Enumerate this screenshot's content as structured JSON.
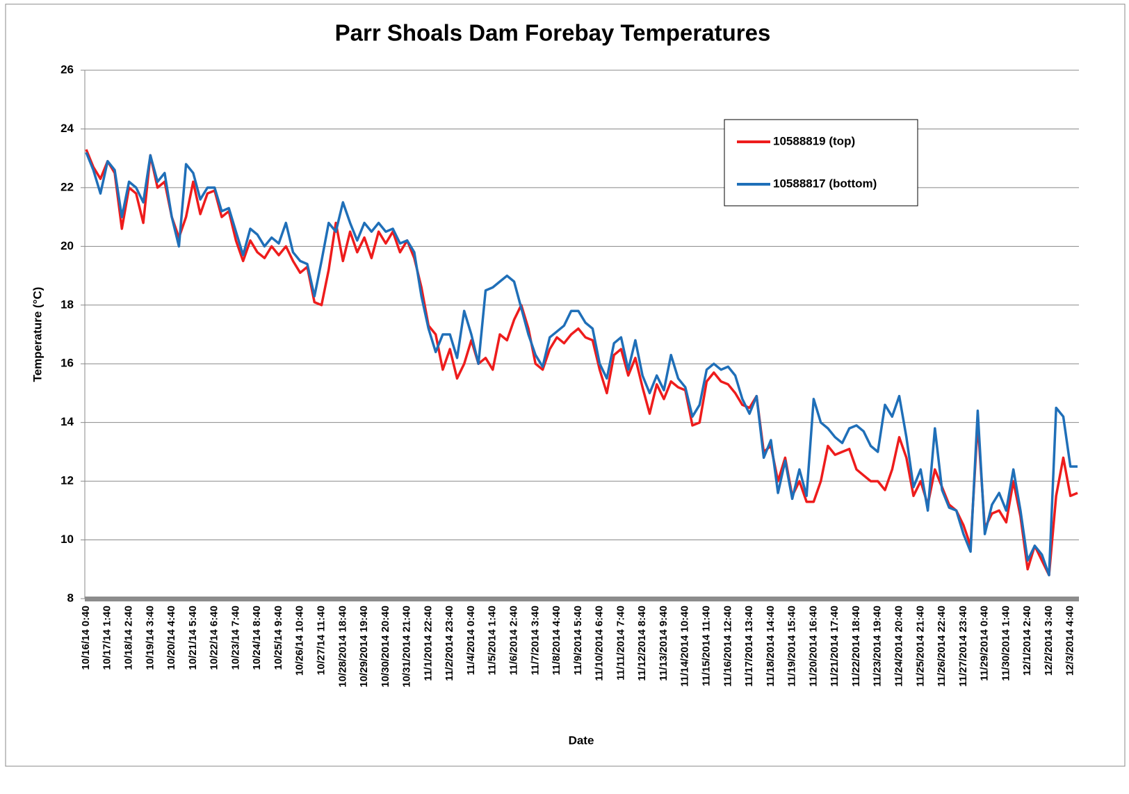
{
  "chart_data": {
    "type": "line",
    "title": "Parr Shoals Dam Forebay Temperatures",
    "x_label": "Date",
    "y_label": "Temperature (°C)",
    "ylim": [
      8,
      26
    ],
    "yticks": [
      8,
      10,
      12,
      14,
      16,
      18,
      20,
      22,
      24,
      26
    ],
    "grid": true,
    "legend": "upper right",
    "categories": [
      "10/16/14 0:40",
      null,
      null,
      "10/17/14 1:40",
      null,
      null,
      "10/18/14 2:40",
      null,
      null,
      "10/19/14 3:40",
      null,
      null,
      "10/20/14 4:40",
      null,
      null,
      "10/21/14 5:40",
      null,
      null,
      "10/22/14 6:40",
      null,
      null,
      "10/23/14 7:40",
      null,
      null,
      "10/24/14 8:40",
      null,
      null,
      "10/25/14 9:40",
      null,
      null,
      "10/26/14 10:40",
      null,
      null,
      "10/27/14 11:40",
      null,
      null,
      "10/28/2014 18:40",
      null,
      null,
      "10/29/2014 19:40",
      null,
      null,
      "10/30/2014 20:40",
      null,
      null,
      "10/31/2014 21:40",
      null,
      null,
      "11/1/2014 22:40",
      null,
      null,
      "11/2/2014 23:40",
      null,
      null,
      "11/4/2014 0:40",
      null,
      null,
      "11/5/2014 1:40",
      null,
      null,
      "11/6/2014 2:40",
      null,
      null,
      "11/7/2014 3:40",
      null,
      null,
      "11/8/2014 4:40",
      null,
      null,
      "11/9/2014 5:40",
      null,
      null,
      "11/10/2014 6:40",
      null,
      null,
      "11/11/2014 7:40",
      null,
      null,
      "11/12/2014 8:40",
      null,
      null,
      "11/13/2014 9:40",
      null,
      null,
      "11/14/2014 10:40",
      null,
      null,
      "11/15/2014 11:40",
      null,
      null,
      "11/16/2014 12:40",
      null,
      null,
      "11/17/2014 13:40",
      null,
      null,
      "11/18/2014 14:40",
      null,
      null,
      "11/19/2014 15:40",
      null,
      null,
      "11/20/2014 16:40",
      null,
      null,
      "11/21/2014 17:40",
      null,
      null,
      "11/22/2014 18:40",
      null,
      null,
      "11/23/2014 19:40",
      null,
      null,
      "11/24/2014 20:40",
      null,
      null,
      "11/25/2014 21:40",
      null,
      null,
      "11/26/2014 22:40",
      null,
      null,
      "11/27/2014 23:40",
      null,
      null,
      "11/29/2014 0:40",
      null,
      null,
      "11/30/2014 1:40",
      null,
      null,
      "12/1/2014 2:40",
      null,
      null,
      "12/2/2014 3:40",
      null,
      null,
      "12/3/2014 4:40",
      null
    ],
    "series": [
      {
        "name": "10588819 (top)",
        "color": "#ee1c1c",
        "values": [
          23.3,
          22.7,
          22.3,
          22.9,
          22.5,
          20.6,
          22.0,
          21.8,
          20.8,
          23.1,
          22.0,
          22.2,
          21.0,
          20.3,
          21.0,
          22.2,
          21.1,
          21.8,
          21.9,
          21.0,
          21.2,
          20.2,
          19.5,
          20.2,
          19.8,
          19.6,
          20.0,
          19.7,
          20.0,
          19.5,
          19.1,
          19.3,
          18.1,
          18.0,
          19.2,
          20.8,
          19.5,
          20.5,
          19.8,
          20.3,
          19.6,
          20.5,
          20.1,
          20.5,
          19.8,
          20.2,
          19.6,
          18.6,
          17.3,
          17.0,
          15.8,
          16.5,
          15.5,
          16.0,
          16.8,
          16.0,
          16.2,
          15.8,
          17.0,
          16.8,
          17.5,
          18.0,
          17.2,
          16.0,
          15.8,
          16.5,
          16.9,
          16.7,
          17.0,
          17.2,
          16.9,
          16.8,
          15.8,
          15.0,
          16.3,
          16.5,
          15.6,
          16.2,
          15.2,
          14.3,
          15.3,
          14.8,
          15.4,
          15.2,
          15.1,
          13.9,
          14.0,
          15.4,
          15.7,
          15.4,
          15.3,
          15.0,
          14.6,
          14.5,
          14.9,
          13.0,
          13.2,
          12.0,
          12.8,
          11.5,
          12.0,
          11.3,
          11.3,
          12.0,
          13.2,
          12.9,
          13.0,
          13.1,
          12.4,
          12.2,
          12.0,
          12.0,
          11.7,
          12.4,
          13.5,
          12.8,
          11.5,
          12.0,
          11.2,
          12.4,
          11.8,
          11.2,
          11.0,
          10.5,
          9.8,
          14.0,
          10.4,
          10.9,
          11.0,
          10.6,
          12.0,
          10.8,
          9.0,
          9.8,
          9.3,
          8.8,
          11.5,
          12.8,
          11.5,
          11.6
        ]
      },
      {
        "name": "10588817 (bottom)",
        "color": "#1f6fb8",
        "values": [
          23.2,
          22.6,
          21.8,
          22.9,
          22.6,
          21.0,
          22.2,
          22.0,
          21.5,
          23.1,
          22.2,
          22.5,
          21.0,
          20.0,
          22.8,
          22.5,
          21.6,
          22.0,
          22.0,
          21.2,
          21.3,
          20.5,
          19.7,
          20.6,
          20.4,
          20.0,
          20.3,
          20.1,
          20.8,
          19.8,
          19.5,
          19.4,
          18.3,
          19.5,
          20.8,
          20.5,
          21.5,
          20.8,
          20.2,
          20.8,
          20.5,
          20.8,
          20.5,
          20.6,
          20.1,
          20.2,
          19.8,
          18.3,
          17.2,
          16.4,
          17.0,
          17.0,
          16.2,
          17.8,
          17.0,
          16.0,
          18.5,
          18.6,
          18.8,
          19.0,
          18.8,
          17.9,
          17.0,
          16.3,
          15.9,
          16.9,
          17.1,
          17.3,
          17.8,
          17.8,
          17.4,
          17.2,
          16.0,
          15.5,
          16.7,
          16.9,
          15.8,
          16.8,
          15.6,
          15.0,
          15.6,
          15.1,
          16.3,
          15.5,
          15.2,
          14.2,
          14.6,
          15.8,
          16.0,
          15.8,
          15.9,
          15.6,
          14.8,
          14.3,
          14.9,
          12.8,
          13.4,
          11.6,
          12.7,
          11.4,
          12.4,
          11.5,
          14.8,
          14.0,
          13.8,
          13.5,
          13.3,
          13.8,
          13.9,
          13.7,
          13.2,
          13.0,
          14.6,
          14.2,
          14.9,
          13.5,
          11.8,
          12.4,
          11.0,
          13.8,
          11.7,
          11.1,
          11.0,
          10.2,
          9.6,
          14.4,
          10.2,
          11.2,
          11.6,
          11.0,
          12.4,
          11.0,
          9.3,
          9.8,
          9.5,
          8.8,
          14.5,
          14.2,
          12.5,
          12.5
        ]
      }
    ]
  }
}
